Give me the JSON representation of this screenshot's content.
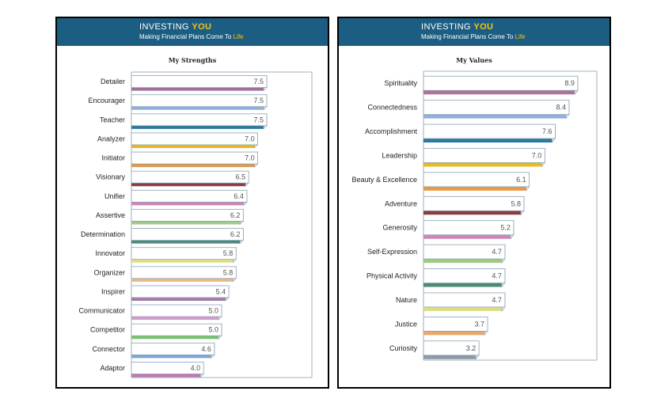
{
  "header": {
    "brand_word": "INVESTING",
    "brand_accent": "YOU",
    "tagline": "Making Financial Plans Come To",
    "tagline_accent": "Life"
  },
  "colors": {
    "header_bg": "#1c5e83",
    "accent": "#f3c316",
    "bar_face": "#ffffff",
    "bar_border": "#8aa3b5"
  },
  "chart_data": [
    {
      "type": "bar",
      "orientation": "horizontal",
      "title": "My Strengths",
      "categories": [
        "Detailer",
        "Encourager",
        "Teacher",
        "Analyzer",
        "Initiator",
        "Visionary",
        "Unifier",
        "Assertive",
        "Determination",
        "Innovator",
        "Organizer",
        "Inspirer",
        "Communicator",
        "Competitor",
        "Connector",
        "Adaptor"
      ],
      "values": [
        7.5,
        7.5,
        7.5,
        7.0,
        7.0,
        6.5,
        6.4,
        6.2,
        6.2,
        5.8,
        5.8,
        5.4,
        5.0,
        5.0,
        4.6,
        4.0
      ],
      "labels": [
        "7.5",
        "7.5",
        "7.5",
        "7.0",
        "7.0",
        "6.5",
        "6.4",
        "6.2",
        "6.2",
        "5.8",
        "5.8",
        "5.4",
        "5.0",
        "5.0",
        "4.6",
        "4.0"
      ],
      "colors": [
        "#a0709a",
        "#8fb0d9",
        "#2b78a0",
        "#e8b921",
        "#dd9a4c",
        "#8a3e42",
        "#cf86b7",
        "#9fcb86",
        "#4b8b76",
        "#dede86",
        "#e8b886",
        "#a678a8",
        "#d89acc",
        "#79c36c",
        "#7fa8d6",
        "#c07ab0"
      ],
      "xlim": [
        0,
        10
      ],
      "grid": false,
      "legend": "none"
    },
    {
      "type": "bar",
      "orientation": "horizontal",
      "title": "My Values",
      "categories": [
        "Spirituality",
        "Connectedness",
        "Accomplishment",
        "Leadership",
        "Beauty & Excellence",
        "Adventure",
        "Generosity",
        "Self-Expression",
        "Physical Activity",
        "Nature",
        "Justice",
        "Curiosity"
      ],
      "values": [
        8.9,
        8.4,
        7.6,
        7.0,
        6.1,
        5.8,
        5.2,
        4.7,
        4.7,
        4.7,
        3.7,
        3.2
      ],
      "labels": [
        "8.9",
        "8.4",
        "7.6",
        "7.0",
        "6.1",
        "5.8",
        "5.2",
        "4.7",
        "4.7",
        "4.7",
        "3.7",
        "3.2"
      ],
      "colors": [
        "#b0709c",
        "#8fb0d9",
        "#2b78a0",
        "#e8b921",
        "#e89a46",
        "#8a3e42",
        "#cf86b7",
        "#9fcb86",
        "#4b8b76",
        "#dede86",
        "#e8a86c",
        "#8d99a6"
      ],
      "xlim": [
        0,
        10
      ],
      "grid": false,
      "legend": "none"
    }
  ]
}
